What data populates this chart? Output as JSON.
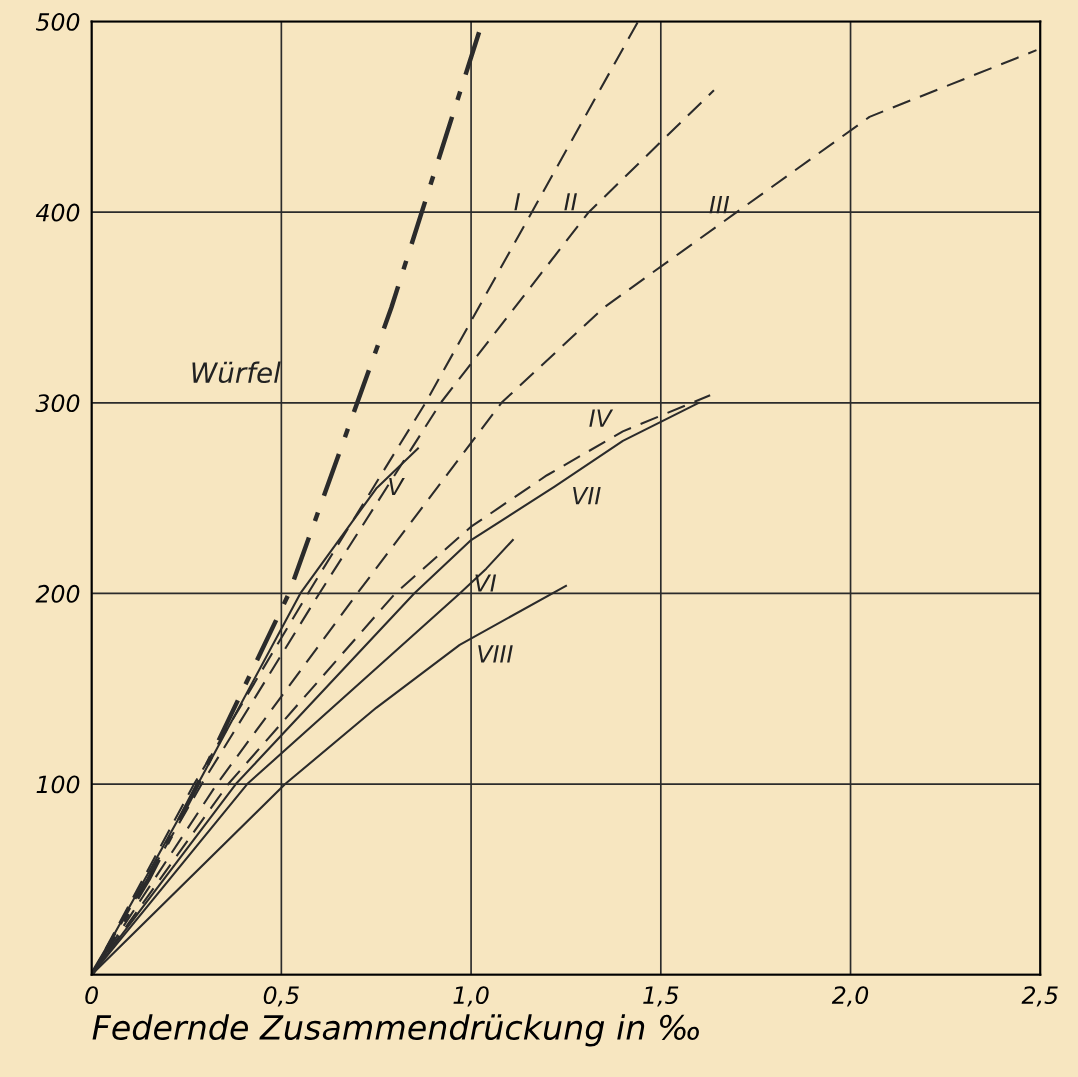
{
  "chart_data": {
    "type": "line",
    "xlabel": "Federnde Zusammendrückung in ‰",
    "xlim": [
      0,
      2.5
    ],
    "ylim": [
      0,
      500
    ],
    "xticks": [
      0,
      {
        "value": 0.5,
        "label": "0,5"
      },
      {
        "value": 1.0,
        "label": "1,0"
      },
      {
        "value": 1.5,
        "label": "1,5"
      },
      {
        "value": 2.0,
        "label": "2,0"
      },
      {
        "value": 2.5,
        "label": "2,5"
      }
    ],
    "yticks": [
      {
        "value": 0,
        "label": null
      },
      100,
      200,
      300,
      400,
      500
    ],
    "grid": true,
    "legend": false,
    "marker": "none",
    "series": [
      {
        "name": "Würfel",
        "color": "#2b2b2b",
        "line_style": "dashdot",
        "x": [
          0,
          0.15,
          0.28,
          0.4,
          0.52,
          0.61,
          0.7,
          0.79,
          0.87,
          0.95,
          1.03
        ],
        "values": [
          0,
          50,
          100,
          150,
          200,
          250,
          300,
          350,
          400,
          450,
          500
        ]
      },
      {
        "name": "I",
        "color": "#2b2b2b",
        "line_style": "dashed",
        "x": [
          0,
          0.27,
          0.57,
          0.88,
          1.16,
          1.44
        ],
        "values": [
          0,
          100,
          200,
          300,
          400,
          500
        ]
      },
      {
        "name": "II",
        "color": "#2b2b2b",
        "line_style": "dashed",
        "x": [
          0,
          0.29,
          0.6,
          0.92,
          1.31,
          1.64
        ],
        "values": [
          0,
          100,
          200,
          300,
          400,
          464
        ]
      },
      {
        "name": "III",
        "color": "#2b2b2b",
        "line_style": "dashed",
        "x": [
          0,
          0.33,
          0.7,
          1.08,
          1.35,
          1.7,
          2.05,
          2.49
        ],
        "values": [
          0,
          100,
          200,
          300,
          350,
          400,
          450,
          485
        ]
      },
      {
        "name": "IV",
        "color": "#2b2b2b",
        "line_style": "dashed",
        "x": [
          0,
          0.36,
          0.8,
          1.0,
          1.2,
          1.4,
          1.63
        ],
        "values": [
          0,
          100,
          200,
          235,
          262,
          285,
          304
        ]
      },
      {
        "name": "V",
        "color": "#2b2b2b",
        "line_style": "solid",
        "x": [
          0,
          0.28,
          0.55,
          0.75,
          0.86
        ],
        "values": [
          0,
          100,
          200,
          255,
          276
        ]
      },
      {
        "name": "VI",
        "color": "#2b2b2b",
        "line_style": "solid",
        "x": [
          0,
          0.41,
          0.97,
          1.04,
          1.11
        ],
        "values": [
          0,
          100,
          200,
          213,
          228
        ]
      },
      {
        "name": "VII",
        "color": "#2b2b2b",
        "line_style": "solid",
        "x": [
          0,
          0.38,
          0.85,
          1.0,
          1.22,
          1.4,
          1.6
        ],
        "values": [
          0,
          100,
          200,
          228,
          256,
          280,
          300
        ]
      },
      {
        "name": "VIII",
        "color": "#2b2b2b",
        "line_style": "solid",
        "x": [
          0,
          0.51,
          0.75,
          0.97,
          1.25
        ],
        "values": [
          0,
          100,
          140,
          173,
          204
        ]
      }
    ]
  }
}
